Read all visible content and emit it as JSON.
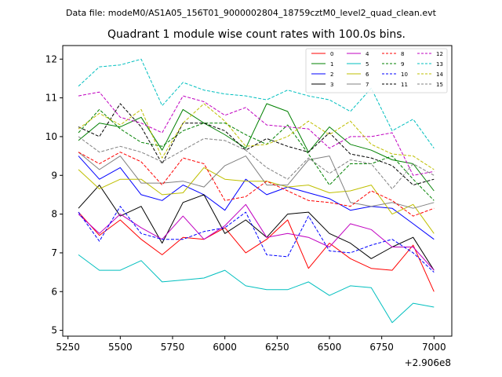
{
  "chart_data": {
    "type": "line",
    "suptitle": "Data file: modeM0/AS1A05_156T01_9000002804_18759cztM0_level2_quad_clean.evt",
    "title": "Quadrant 1 module wise count rates with 100.0s bins.",
    "x_offset_label": "+2.906e8",
    "xlim": [
      5225,
      7085
    ],
    "ylim": [
      4.85,
      12.35
    ],
    "xticks": [
      5250,
      5500,
      5750,
      6000,
      6250,
      6500,
      6750,
      7000
    ],
    "yticks": [
      5,
      6,
      7,
      8,
      9,
      10,
      11,
      12
    ],
    "x": [
      5300,
      5400,
      5500,
      5600,
      5700,
      5800,
      5900,
      6000,
      6100,
      6200,
      6300,
      6400,
      6500,
      6600,
      6700,
      6800,
      6900,
      7000
    ],
    "legend_position": "upper-right",
    "series": [
      {
        "name": "0",
        "color": "#ff0000",
        "dash": "solid",
        "values": [
          8.05,
          7.45,
          7.85,
          7.35,
          6.95,
          7.4,
          7.35,
          7.65,
          7.0,
          7.35,
          7.85,
          6.6,
          7.25,
          6.85,
          6.6,
          6.55,
          7.2,
          6.0
        ]
      },
      {
        "name": "1",
        "color": "#008000",
        "dash": "solid",
        "values": [
          9.9,
          10.35,
          10.25,
          10.5,
          9.65,
          10.7,
          10.35,
          10.05,
          9.7,
          10.85,
          10.65,
          9.6,
          10.25,
          9.8,
          9.65,
          9.4,
          9.3,
          8.6
        ]
      },
      {
        "name": "2",
        "color": "#0000ff",
        "dash": "solid",
        "values": [
          9.5,
          8.9,
          9.2,
          8.5,
          8.35,
          8.75,
          8.5,
          8.1,
          8.9,
          8.5,
          8.7,
          8.55,
          8.4,
          8.1,
          8.2,
          8.15,
          7.75,
          7.35
        ]
      },
      {
        "name": "3",
        "color": "#000000",
        "dash": "solid",
        "values": [
          8.15,
          8.75,
          7.95,
          8.2,
          7.25,
          8.3,
          8.5,
          7.5,
          7.85,
          7.4,
          8.0,
          8.05,
          7.5,
          7.25,
          6.85,
          7.15,
          7.4,
          6.55
        ]
      },
      {
        "name": "4",
        "color": "#c000c0",
        "dash": "solid",
        "values": [
          8.0,
          7.5,
          8.0,
          7.65,
          7.35,
          7.95,
          7.35,
          7.7,
          8.25,
          7.4,
          7.5,
          7.4,
          7.15,
          7.75,
          7.6,
          7.15,
          7.15,
          6.55
        ]
      },
      {
        "name": "5",
        "color": "#00bfbf",
        "dash": "solid",
        "values": [
          6.95,
          6.55,
          6.55,
          6.8,
          6.25,
          6.3,
          6.35,
          6.55,
          6.15,
          6.05,
          6.05,
          6.25,
          5.9,
          6.15,
          6.1,
          5.2,
          5.7,
          5.6
        ]
      },
      {
        "name": "6",
        "color": "#bfbf00",
        "dash": "solid",
        "values": [
          9.15,
          8.65,
          8.9,
          8.9,
          8.5,
          8.55,
          9.2,
          8.9,
          8.85,
          8.85,
          8.7,
          8.75,
          8.55,
          8.6,
          8.75,
          8.0,
          8.25,
          7.5
        ]
      },
      {
        "name": "7",
        "color": "#808080",
        "dash": "solid",
        "values": [
          9.6,
          9.15,
          9.5,
          8.8,
          8.8,
          8.85,
          8.7,
          9.25,
          9.5,
          8.75,
          8.75,
          9.4,
          9.5,
          8.3,
          8.2,
          8.3,
          8.15,
          8.3
        ]
      },
      {
        "name": "8",
        "color": "#ff0000",
        "dash": "dashed",
        "values": [
          9.6,
          9.3,
          9.6,
          9.35,
          8.75,
          9.45,
          9.3,
          8.35,
          8.45,
          8.85,
          8.6,
          8.35,
          8.3,
          8.2,
          8.6,
          8.35,
          7.95,
          8.15
        ]
      },
      {
        "name": "9",
        "color": "#008000",
        "dash": "dashed",
        "values": [
          10.1,
          10.7,
          10.2,
          9.85,
          9.75,
          10.15,
          10.35,
          10.35,
          10.05,
          9.8,
          10.3,
          9.55,
          8.75,
          9.3,
          9.3,
          9.5,
          8.9,
          8.35
        ]
      },
      {
        "name": "10",
        "color": "#0000ff",
        "dash": "dashed",
        "values": [
          8.05,
          7.3,
          8.2,
          7.5,
          7.35,
          7.35,
          7.55,
          7.65,
          8.05,
          6.95,
          6.9,
          7.95,
          7.05,
          7.0,
          7.2,
          7.35,
          7.0,
          6.5
        ]
      },
      {
        "name": "11",
        "color": "#000000",
        "dash": "dashed",
        "values": [
          10.25,
          10.0,
          10.85,
          10.25,
          9.3,
          10.35,
          10.35,
          10.15,
          9.65,
          9.95,
          9.75,
          9.6,
          10.1,
          9.55,
          9.45,
          9.25,
          8.75,
          8.9
        ]
      },
      {
        "name": "12",
        "color": "#c000c0",
        "dash": "dashed",
        "values": [
          11.05,
          11.15,
          10.5,
          10.35,
          10.1,
          11.05,
          10.9,
          10.55,
          10.75,
          10.3,
          10.25,
          10.2,
          9.7,
          10.0,
          10.0,
          10.1,
          9.0,
          9.1
        ]
      },
      {
        "name": "13",
        "color": "#00bfbf",
        "dash": "dashed",
        "values": [
          11.3,
          11.8,
          11.85,
          12.0,
          10.8,
          11.4,
          11.2,
          11.1,
          11.05,
          10.95,
          11.2,
          11.05,
          10.95,
          10.65,
          11.25,
          10.15,
          10.45,
          9.7
        ]
      },
      {
        "name": "14",
        "color": "#bfbf00",
        "dash": "dashed",
        "values": [
          10.2,
          10.6,
          10.3,
          10.7,
          9.45,
          10.35,
          10.85,
          10.4,
          9.75,
          9.8,
          10.0,
          10.4,
          10.05,
          10.4,
          9.8,
          9.55,
          9.5,
          9.15
        ]
      },
      {
        "name": "15",
        "color": "#808080",
        "dash": "dashed",
        "values": [
          10.0,
          9.6,
          9.75,
          9.6,
          9.35,
          9.65,
          9.95,
          9.9,
          9.65,
          9.2,
          8.9,
          9.45,
          9.05,
          9.4,
          9.3,
          8.65,
          9.3,
          9.0
        ]
      }
    ]
  }
}
